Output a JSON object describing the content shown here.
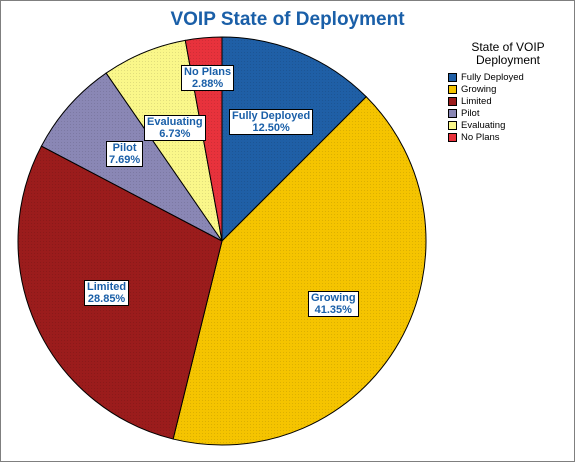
{
  "chart_data": {
    "type": "pie",
    "title": "VOIP State of Deployment",
    "legend_title": "State of VOIP Deployment",
    "legend_position": "top-right",
    "slices": [
      {
        "name": "Fully Deployed",
        "value": 12.5,
        "label": "12.50%",
        "color": "#1f5fa6"
      },
      {
        "name": "Growing",
        "value": 41.35,
        "label": "41.35%",
        "color": "#f5c400"
      },
      {
        "name": "Limited",
        "value": 28.85,
        "label": "28.85%",
        "color": "#9b1c1c"
      },
      {
        "name": "Pilot",
        "value": 7.69,
        "label": "7.69%",
        "color": "#8a87b5"
      },
      {
        "name": "Evaluating",
        "value": 6.73,
        "label": "6.73%",
        "color": "#faf78a"
      },
      {
        "name": "No Plans",
        "value": 2.88,
        "label": "2.88%",
        "color": "#e8323c"
      }
    ]
  }
}
